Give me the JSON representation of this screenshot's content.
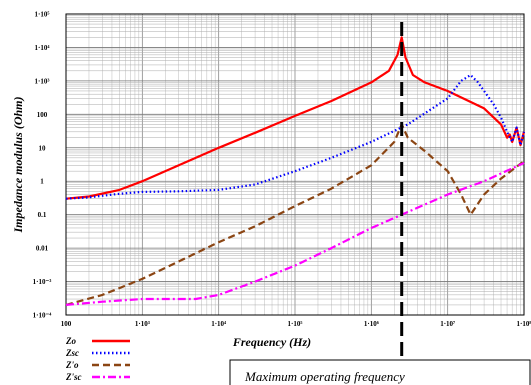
{
  "chart_data": {
    "type": "line",
    "title": "",
    "xlabel": "Frequency (Hz)",
    "ylabel": "Impedance modulus (Ohm)",
    "x_scale": "log",
    "y_scale": "log",
    "xlim": [
      100,
      100000000
    ],
    "ylim": [
      0.0001,
      100000
    ],
    "grid": true,
    "legend_position": "bottom-left, outside plot",
    "x_tick_labels": [
      "100",
      "1·10³",
      "1·10⁴",
      "1·10⁵",
      "1·10⁶",
      "1·10⁷",
      "1·10⁸"
    ],
    "y_tick_labels": [
      "1·10⁵",
      "1·10⁴",
      "1·10³",
      "100",
      "10",
      "1",
      "0.1",
      "0.01",
      "1·10⁻³",
      "1·10⁻⁴"
    ],
    "annotation": {
      "text": "Maximum operating frequency",
      "x": 2500000
    },
    "series": [
      {
        "name": "Zo",
        "color": "#ff0000",
        "dash": "solid",
        "x": [
          100,
          200,
          500,
          1000,
          3000,
          10000,
          30000,
          100000,
          300000,
          1000000,
          1700000,
          2200000,
          2500000,
          2800000,
          3500000,
          5000000,
          10000000,
          30000000,
          50000000,
          60000000,
          65000000,
          70000000,
          80000000,
          90000000,
          100000000
        ],
        "y": [
          0.3,
          0.35,
          0.55,
          1,
          3,
          10,
          28,
          90,
          250,
          900,
          2000,
          6000,
          20000,
          5000,
          1500,
          900,
          500,
          150,
          50,
          20,
          25,
          15,
          40,
          12,
          30
        ]
      },
      {
        "name": "Zsc",
        "color": "#0000ff",
        "dash": "dotted",
        "x": [
          100,
          200,
          500,
          1000,
          3000,
          10000,
          30000,
          100000,
          300000,
          1000000,
          3000000,
          10000000,
          15000000,
          20000000,
          25000000,
          30000000,
          40000000,
          50000000,
          60000000,
          70000000,
          80000000,
          90000000,
          100000000
        ],
        "y": [
          0.3,
          0.33,
          0.42,
          0.48,
          0.5,
          0.55,
          0.8,
          2,
          5,
          15,
          50,
          300,
          1000,
          1500,
          900,
          500,
          200,
          80,
          30,
          15,
          40,
          12,
          30
        ]
      },
      {
        "name": "Z'o",
        "color": "#8b4513",
        "dash": "dashed",
        "x": [
          100,
          300,
          1000,
          3000,
          10000,
          30000,
          100000,
          300000,
          1000000,
          2000000,
          2500000,
          3000000,
          5000000,
          10000000,
          15000000,
          20000000,
          30000000,
          50000000,
          100000000
        ],
        "y": [
          0.0002,
          0.0004,
          0.0012,
          0.004,
          0.015,
          0.045,
          0.18,
          0.6,
          3,
          15,
          50,
          20,
          8,
          2,
          0.4,
          0.1,
          0.4,
          1.2,
          4
        ]
      },
      {
        "name": "Z'sc",
        "color": "#ff00ff",
        "dash": "dashdot",
        "x": [
          100,
          300,
          1000,
          2000,
          5000,
          10000,
          30000,
          100000,
          300000,
          1000000,
          3000000,
          10000000,
          30000000,
          100000000
        ],
        "y": [
          0.0002,
          0.00025,
          0.0003,
          0.0003,
          0.0003,
          0.0004,
          0.001,
          0.003,
          0.01,
          0.04,
          0.12,
          0.4,
          1,
          3.5
        ]
      }
    ]
  }
}
